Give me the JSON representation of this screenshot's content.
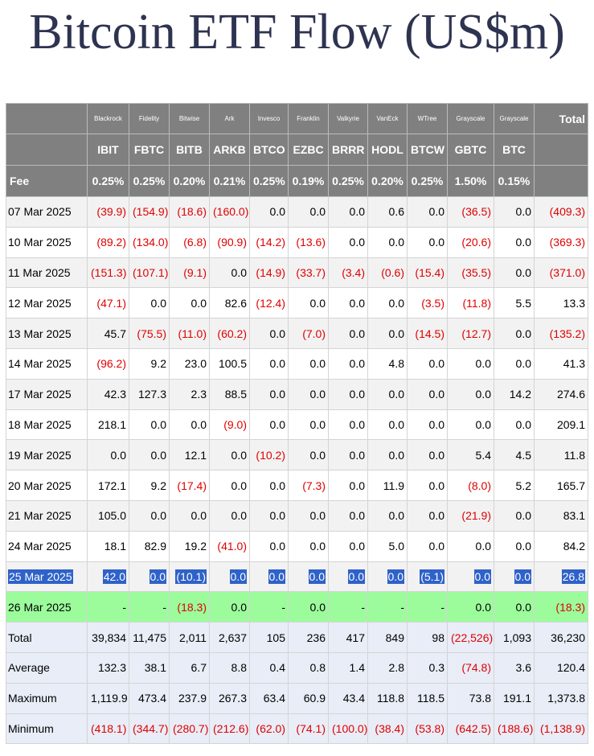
{
  "title": "Bitcoin ETF Flow (US$m)",
  "table": {
    "issuers": [
      "Blackrock",
      "Fidelity",
      "Bitwise",
      "Ark",
      "Invesco",
      "Franklin",
      "Valkyrie",
      "VanEck",
      "WTree",
      "Grayscale",
      "Grayscale",
      "Total"
    ],
    "tickers": [
      "IBIT",
      "FBTC",
      "BITB",
      "ARKB",
      "BTCO",
      "EZBC",
      "BRRR",
      "HODL",
      "BTCW",
      "GBTC",
      "BTC"
    ],
    "fee_label": "Fee",
    "fees": [
      "0.25%",
      "0.25%",
      "0.20%",
      "0.21%",
      "0.25%",
      "0.19%",
      "0.25%",
      "0.20%",
      "0.25%",
      "1.50%",
      "0.15%"
    ],
    "rows": [
      [
        "07 Mar 2025",
        "(39.9)",
        "(154.9)",
        "(18.6)",
        "(160.0)",
        "0.0",
        "0.0",
        "0.0",
        "0.6",
        "0.0",
        "(36.5)",
        "0.0",
        "(409.3)"
      ],
      [
        "10 Mar 2025",
        "(89.2)",
        "(134.0)",
        "(6.8)",
        "(90.9)",
        "(14.2)",
        "(13.6)",
        "0.0",
        "0.0",
        "0.0",
        "(20.6)",
        "0.0",
        "(369.3)"
      ],
      [
        "11 Mar 2025",
        "(151.3)",
        "(107.1)",
        "(9.1)",
        "0.0",
        "(14.9)",
        "(33.7)",
        "(3.4)",
        "(0.6)",
        "(15.4)",
        "(35.5)",
        "0.0",
        "(371.0)"
      ],
      [
        "12 Mar 2025",
        "(47.1)",
        "0.0",
        "0.0",
        "82.6",
        "(12.4)",
        "0.0",
        "0.0",
        "0.0",
        "(3.5)",
        "(11.8)",
        "5.5",
        "13.3"
      ],
      [
        "13 Mar 2025",
        "45.7",
        "(75.5)",
        "(11.0)",
        "(60.2)",
        "0.0",
        "(7.0)",
        "0.0",
        "0.0",
        "(14.5)",
        "(12.7)",
        "0.0",
        "(135.2)"
      ],
      [
        "14 Mar 2025",
        "(96.2)",
        "9.2",
        "23.0",
        "100.5",
        "0.0",
        "0.0",
        "0.0",
        "4.8",
        "0.0",
        "0.0",
        "0.0",
        "41.3"
      ],
      [
        "17 Mar 2025",
        "42.3",
        "127.3",
        "2.3",
        "88.5",
        "0.0",
        "0.0",
        "0.0",
        "0.0",
        "0.0",
        "0.0",
        "14.2",
        "274.6"
      ],
      [
        "18 Mar 2025",
        "218.1",
        "0.0",
        "0.0",
        "(9.0)",
        "0.0",
        "0.0",
        "0.0",
        "0.0",
        "0.0",
        "0.0",
        "0.0",
        "209.1"
      ],
      [
        "19 Mar 2025",
        "0.0",
        "0.0",
        "12.1",
        "0.0",
        "(10.2)",
        "0.0",
        "0.0",
        "0.0",
        "0.0",
        "5.4",
        "4.5",
        "11.8"
      ],
      [
        "20 Mar 2025",
        "172.1",
        "9.2",
        "(17.4)",
        "0.0",
        "0.0",
        "(7.3)",
        "0.0",
        "11.9",
        "0.0",
        "(8.0)",
        "5.2",
        "165.7"
      ],
      [
        "21 Mar 2025",
        "105.0",
        "0.0",
        "0.0",
        "0.0",
        "0.0",
        "0.0",
        "0.0",
        "0.0",
        "0.0",
        "(21.9)",
        "0.0",
        "83.1"
      ],
      [
        "24 Mar 2025",
        "18.1",
        "82.9",
        "19.2",
        "(41.0)",
        "0.0",
        "0.0",
        "0.0",
        "5.0",
        "0.0",
        "0.0",
        "0.0",
        "84.2"
      ],
      [
        "25 Mar 2025",
        "42.0",
        "0.0",
        "(10.1)",
        "0.0",
        "0.0",
        "0.0",
        "0.0",
        "0.0",
        "(5.1)",
        "0.0",
        "0.0",
        "26.8"
      ],
      [
        "26 Mar 2025",
        "-",
        "-",
        "(18.3)",
        "0.0",
        "-",
        "0.0",
        "-",
        "-",
        "-",
        "0.0",
        "0.0",
        "(18.3)"
      ],
      [
        "Total",
        "39,834",
        "11,475",
        "2,011",
        "2,637",
        "105",
        "236",
        "417",
        "849",
        "98",
        "(22,526)",
        "1,093",
        "36,230"
      ],
      [
        "Average",
        "132.3",
        "38.1",
        "6.7",
        "8.8",
        "0.4",
        "0.8",
        "1.4",
        "2.8",
        "0.3",
        "(74.8)",
        "3.6",
        "120.4"
      ],
      [
        "Maximum",
        "1,119.9",
        "473.4",
        "237.9",
        "267.3",
        "63.4",
        "60.9",
        "43.4",
        "118.8",
        "118.5",
        "73.8",
        "191.1",
        "1,373.8"
      ],
      [
        "Minimum",
        "(418.1)",
        "(344.7)",
        "(280.7)",
        "(212.6)",
        "(62.0)",
        "(74.1)",
        "(100.0)",
        "(38.4)",
        "(53.8)",
        "(642.5)",
        "(188.6)",
        "(1,138.9)"
      ]
    ]
  }
}
